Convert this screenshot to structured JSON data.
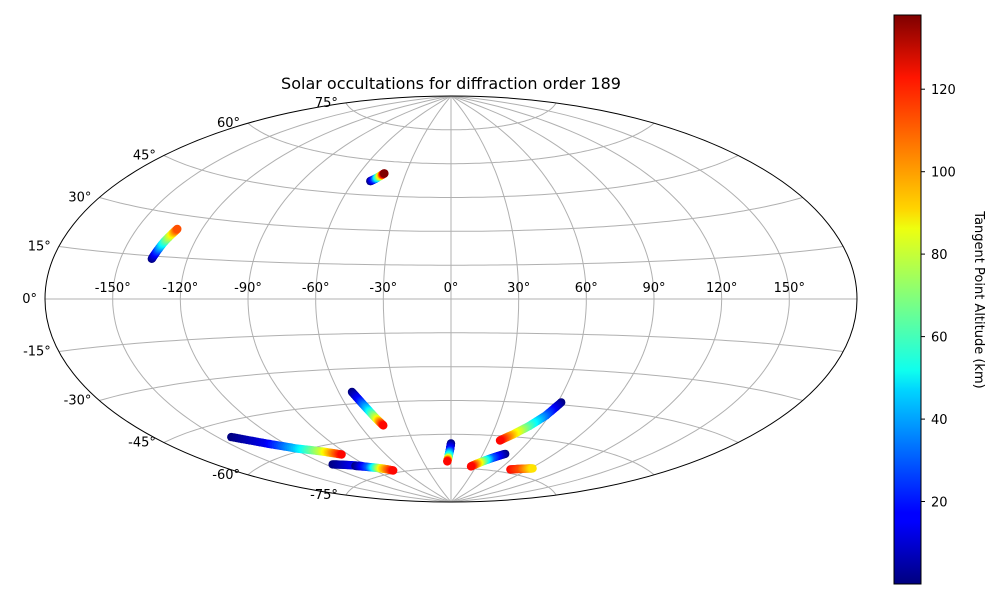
{
  "chart_data": {
    "type": "scatter",
    "projection": "aitoff",
    "title": "Solar occultations for diffraction order 189",
    "lon_ticks": [
      "-150°",
      "-120°",
      "-90°",
      "-60°",
      "-30°",
      "0°",
      "30°",
      "60°",
      "90°",
      "120°",
      "150°"
    ],
    "lon_tick_values": [
      -150,
      -120,
      -90,
      -60,
      -30,
      0,
      30,
      60,
      90,
      120,
      150
    ],
    "lat_ticks": [
      "75°",
      "60°",
      "45°",
      "30°",
      "15°",
      "0°",
      "-15°",
      "-30°",
      "-45°",
      "-60°",
      "-75°"
    ],
    "lat_tick_values": [
      75,
      60,
      45,
      30,
      15,
      0,
      -15,
      -30,
      -45,
      -60,
      -75
    ],
    "grid": true,
    "colormap": "jet",
    "colorbar": {
      "label": "Tangent Point Altitude (km)",
      "range": [
        0,
        138
      ],
      "ticks": [
        "20",
        "40",
        "60",
        "80",
        "100",
        "120"
      ],
      "tick_values": [
        20,
        40,
        60,
        80,
        100,
        120
      ],
      "placement": "right"
    },
    "series": [
      {
        "points": [
          {
            "lon": -50,
            "lat": 51,
            "alt": 0
          },
          {
            "lon": -48,
            "lat": 52,
            "alt": 25
          },
          {
            "lon": -46.5,
            "lat": 53,
            "alt": 60
          },
          {
            "lon": -45,
            "lat": 54,
            "alt": 100
          },
          {
            "lon": -44,
            "lat": 54.7,
            "alt": 138
          }
        ]
      },
      {
        "points": [
          {
            "lon": -136,
            "lat": 14,
            "alt": 0
          },
          {
            "lon": -135,
            "lat": 17,
            "alt": 25
          },
          {
            "lon": -134,
            "lat": 20,
            "alt": 55
          },
          {
            "lon": -132.5,
            "lat": 23,
            "alt": 85
          },
          {
            "lon": -131.5,
            "lat": 25,
            "alt": 110
          }
        ]
      },
      {
        "points": [
          {
            "lon": -53,
            "lat": -40,
            "alt": 0
          },
          {
            "lon": -51,
            "lat": -44,
            "alt": 20
          },
          {
            "lon": -49,
            "lat": -48,
            "alt": 45
          },
          {
            "lon": -47,
            "lat": -52,
            "alt": 80
          },
          {
            "lon": -45,
            "lat": -55,
            "alt": 120
          }
        ]
      },
      {
        "points": [
          {
            "lon": -143,
            "lat": -50,
            "alt": 0
          },
          {
            "lon": -130,
            "lat": -55,
            "alt": 15
          },
          {
            "lon": -118,
            "lat": -59,
            "alt": 45
          },
          {
            "lon": -105,
            "lat": -62,
            "alt": 80
          },
          {
            "lon": -95,
            "lat": -64.5,
            "alt": 120
          }
        ]
      },
      {
        "points": [
          {
            "lon": -115,
            "lat": -67,
            "alt": 0
          },
          {
            "lon": -105,
            "lat": -68.5,
            "alt": 10
          },
          {
            "lon": -95,
            "lat": -70,
            "alt": 20
          }
        ]
      },
      {
        "points": [
          {
            "lon": -100,
            "lat": -69.5,
            "alt": 0
          },
          {
            "lon": -90,
            "lat": -71,
            "alt": 30
          },
          {
            "lon": -80,
            "lat": -72.5,
            "alt": 90
          },
          {
            "lon": -72,
            "lat": -74,
            "alt": 120
          }
        ]
      },
      {
        "points": [
          {
            "lon": 0,
            "lat": -64,
            "alt": 0
          },
          {
            "lon": -1,
            "lat": -67,
            "alt": 20
          },
          {
            "lon": -2.5,
            "lat": -70,
            "alt": 60
          },
          {
            "lon": -4,
            "lat": -72,
            "alt": 120
          }
        ]
      },
      {
        "points": [
          {
            "lon": 50,
            "lat": -67.5,
            "alt": 0
          },
          {
            "lon": 40,
            "lat": -70,
            "alt": 30
          },
          {
            "lon": 30,
            "lat": -72.5,
            "alt": 90
          },
          {
            "lon": 24,
            "lat": -74,
            "alt": 120
          }
        ]
      },
      {
        "points": [
          {
            "lon": 62,
            "lat": -44,
            "alt": 0
          },
          {
            "lon": 58,
            "lat": -50,
            "alt": 30
          },
          {
            "lon": 52,
            "lat": -55,
            "alt": 60
          },
          {
            "lon": 45,
            "lat": -59,
            "alt": 90
          },
          {
            "lon": 38,
            "lat": -62,
            "alt": 120
          }
        ]
      },
      {
        "points": [
          {
            "lon": 72,
            "lat": -73.5,
            "alt": 120
          },
          {
            "lon": 82,
            "lat": -72.5,
            "alt": 110
          },
          {
            "lon": 92,
            "lat": -71.5,
            "alt": 90
          }
        ]
      }
    ]
  }
}
